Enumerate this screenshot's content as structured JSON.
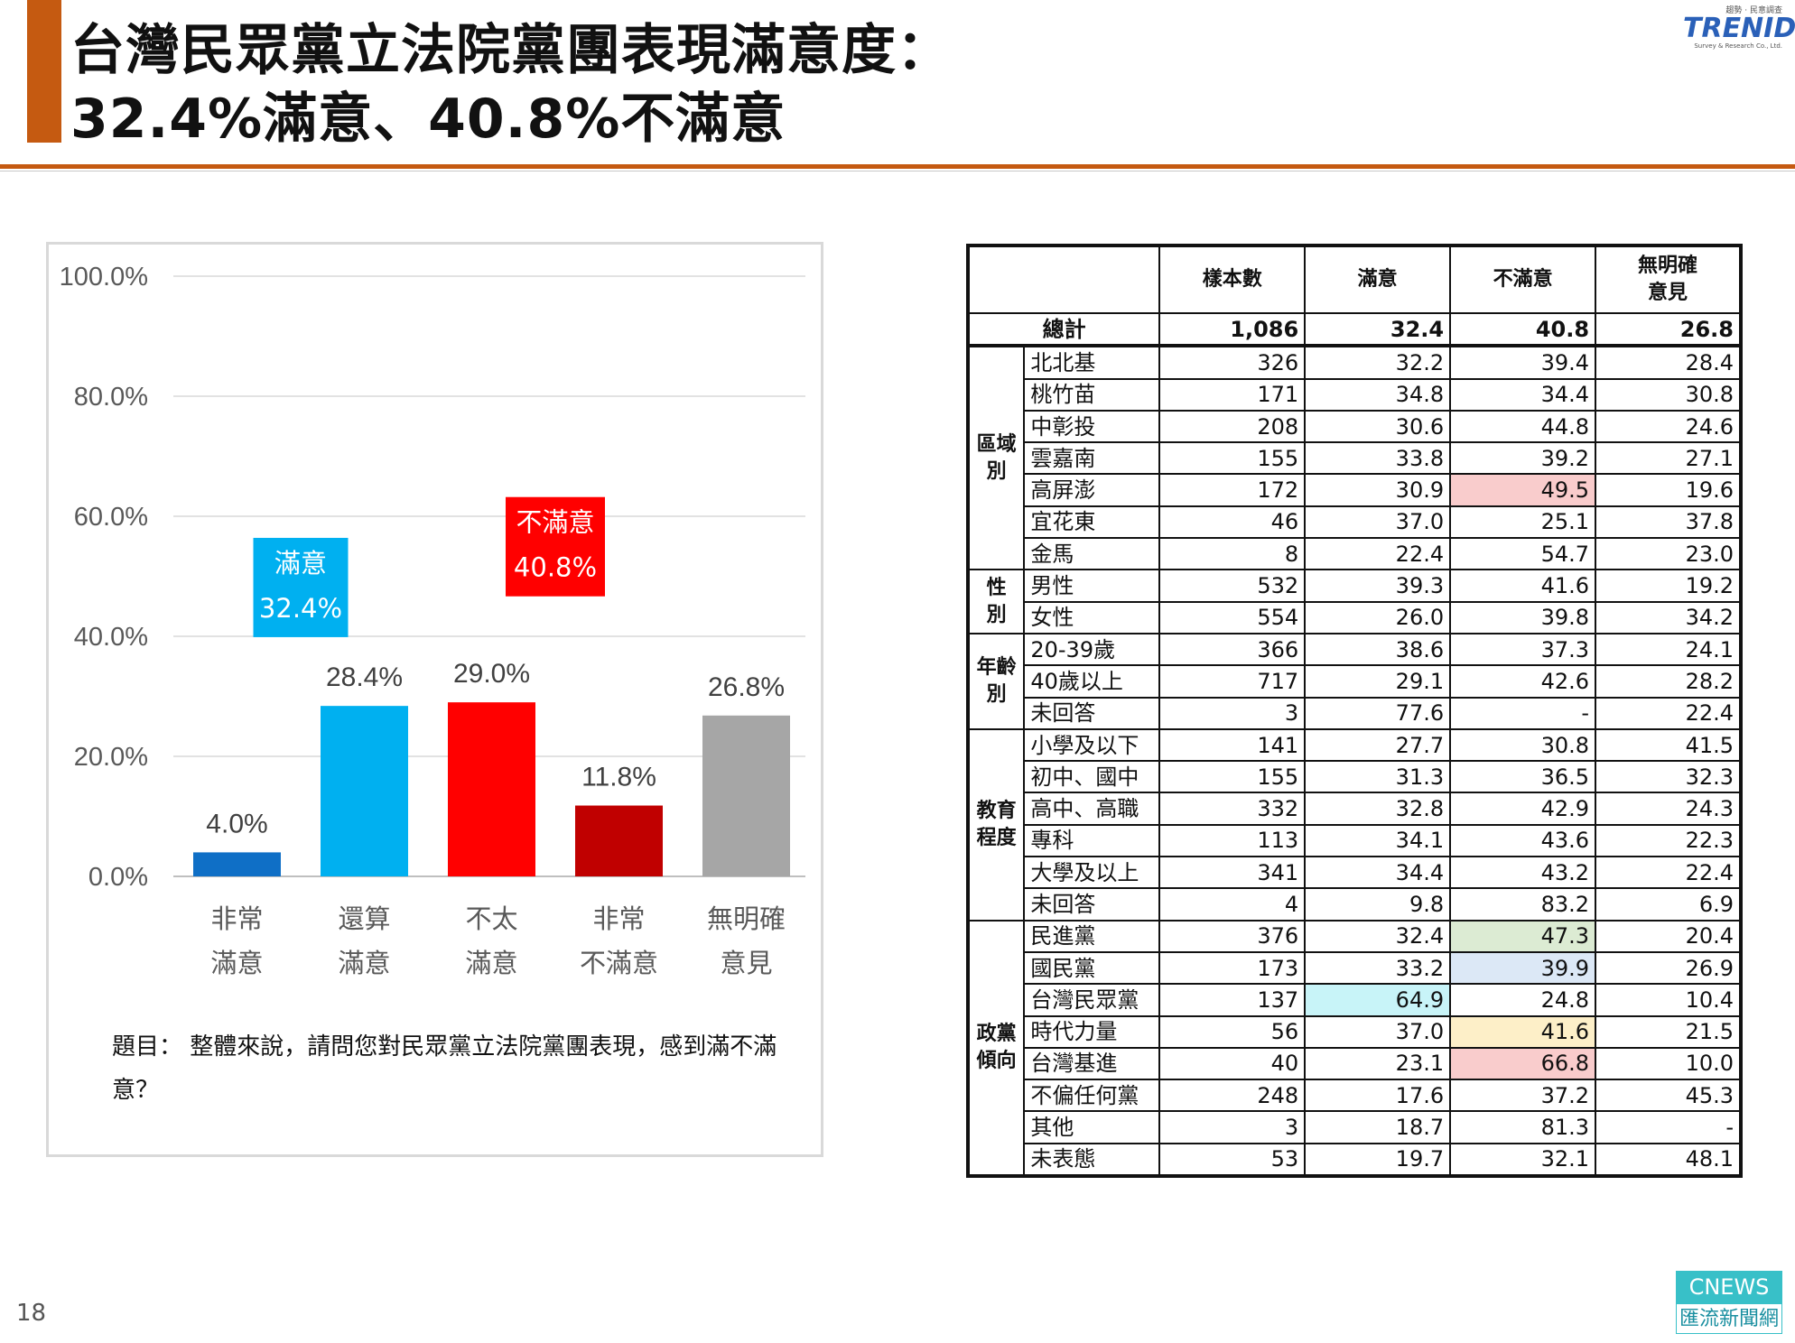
{
  "title": {
    "line1": "台灣民眾黨立法院黨團表現滿意度：",
    "line2": "32.4%滿意、40.8%不滿意"
  },
  "logo": {
    "top_text": "趨勢 · 民意調查",
    "brand": "TRENID",
    "sub_text": "Survey & Research Co., Ltd."
  },
  "chart_data": {
    "type": "bar",
    "categories": [
      [
        "非常",
        "滿意"
      ],
      [
        "還算",
        "滿意"
      ],
      [
        "不太",
        "滿意"
      ],
      [
        "非常",
        "不滿意"
      ],
      [
        "無明確",
        "意見"
      ]
    ],
    "values": [
      4.0,
      28.4,
      29.0,
      11.8,
      26.8
    ],
    "value_labels": [
      "4.0%",
      "28.4%",
      "29.0%",
      "11.8%",
      "26.8%"
    ],
    "bar_colors": [
      "#0f6fc6",
      "#00b0f0",
      "#ff0000",
      "#c00000",
      "#a6a6a6"
    ],
    "ylim": [
      0,
      100
    ],
    "y_ticks": [
      "0.0%",
      "20.0%",
      "40.0%",
      "60.0%",
      "80.0%",
      "100.0%"
    ],
    "grid": true,
    "annotations": [
      {
        "lines": [
          "滿意",
          "32.4%"
        ],
        "color": "#00b0f0",
        "spans": [
          0,
          1
        ]
      },
      {
        "lines": [
          "不滿意",
          "40.8%"
        ],
        "color": "#ff0000",
        "spans": [
          2,
          3
        ]
      }
    ]
  },
  "question": "題目：  整體來說，請問您對民眾黨立法院黨團表現，感到滿不滿意？",
  "table": {
    "headers": [
      "樣本數",
      "滿意",
      "不滿意",
      "無明確意見"
    ],
    "header_lines": [
      [
        "樣本數"
      ],
      [
        "滿意"
      ],
      [
        "不滿意"
      ],
      [
        "無明確",
        "意見"
      ]
    ],
    "total": {
      "label": "總計",
      "values": [
        "1,086",
        "32.4",
        "40.8",
        "26.8"
      ]
    },
    "groups": [
      {
        "name": "區域別",
        "rows": [
          {
            "label": "北北基",
            "values": [
              "326",
              "32.2",
              "39.4",
              "28.4"
            ]
          },
          {
            "label": "桃竹苗",
            "values": [
              "171",
              "34.8",
              "34.4",
              "30.8"
            ]
          },
          {
            "label": "中彰投",
            "values": [
              "208",
              "30.6",
              "44.8",
              "24.6"
            ]
          },
          {
            "label": "雲嘉南",
            "values": [
              "155",
              "33.8",
              "39.2",
              "27.1"
            ]
          },
          {
            "label": "高屏澎",
            "values": [
              "172",
              "30.9",
              "49.5",
              "19.6"
            ],
            "highlight": {
              "col": 2,
              "color": "#f9cccc"
            }
          },
          {
            "label": "宜花東",
            "values": [
              "46",
              "37.0",
              "25.1",
              "37.8"
            ]
          },
          {
            "label": "金馬",
            "values": [
              "8",
              "22.4",
              "54.7",
              "23.0"
            ]
          }
        ]
      },
      {
        "name": "性別",
        "rows": [
          {
            "label": "男性",
            "values": [
              "532",
              "39.3",
              "41.6",
              "19.2"
            ]
          },
          {
            "label": "女性",
            "values": [
              "554",
              "26.0",
              "39.8",
              "34.2"
            ]
          }
        ]
      },
      {
        "name": "年齡別",
        "rows": [
          {
            "label": "20-39歲",
            "values": [
              "366",
              "38.6",
              "37.3",
              "24.1"
            ]
          },
          {
            "label": "40歲以上",
            "values": [
              "717",
              "29.1",
              "42.6",
              "28.2"
            ]
          },
          {
            "label": "未回答",
            "values": [
              "3",
              "77.6",
              "-",
              "22.4"
            ]
          }
        ]
      },
      {
        "name": "教育程度",
        "rows": [
          {
            "label": "小學及以下",
            "values": [
              "141",
              "27.7",
              "30.8",
              "41.5"
            ]
          },
          {
            "label": "初中、國中",
            "values": [
              "155",
              "31.3",
              "36.5",
              "32.3"
            ]
          },
          {
            "label": "高中、高職",
            "values": [
              "332",
              "32.8",
              "42.9",
              "24.3"
            ]
          },
          {
            "label": "專科",
            "values": [
              "113",
              "34.1",
              "43.6",
              "22.3"
            ]
          },
          {
            "label": "大學及以上",
            "values": [
              "341",
              "34.4",
              "43.2",
              "22.4"
            ]
          },
          {
            "label": "未回答",
            "values": [
              "4",
              "9.8",
              "83.2",
              "6.9"
            ]
          }
        ]
      },
      {
        "name": "政黨傾向",
        "rows": [
          {
            "label": "民進黨",
            "values": [
              "376",
              "32.4",
              "47.3",
              "20.4"
            ],
            "highlight": {
              "col": 2,
              "color": "#dcebd3"
            }
          },
          {
            "label": "國民黨",
            "values": [
              "173",
              "33.2",
              "39.9",
              "26.9"
            ],
            "highlight": {
              "col": 2,
              "color": "#dce8f6"
            }
          },
          {
            "label": "台灣民眾黨",
            "values": [
              "137",
              "64.9",
              "24.8",
              "10.4"
            ],
            "highlight": {
              "col": 1,
              "color": "#c8f4f8"
            }
          },
          {
            "label": "時代力量",
            "values": [
              "56",
              "37.0",
              "41.6",
              "21.5"
            ],
            "highlight": {
              "col": 2,
              "color": "#fdefc8"
            }
          },
          {
            "label": "台灣基進",
            "values": [
              "40",
              "23.1",
              "66.8",
              "10.0"
            ],
            "highlight": {
              "col": 2,
              "color": "#f9cccc"
            }
          },
          {
            "label": "不偏任何黨",
            "values": [
              "248",
              "17.6",
              "37.2",
              "45.3"
            ]
          },
          {
            "label": "其他",
            "values": [
              "3",
              "18.7",
              "81.3",
              "-"
            ]
          },
          {
            "label": "未表態",
            "values": [
              "53",
              "19.7",
              "32.1",
              "48.1"
            ]
          }
        ]
      }
    ]
  },
  "page_number": "18",
  "watermark": {
    "top": "CNEWS",
    "bottom": "匯流新聞網"
  }
}
